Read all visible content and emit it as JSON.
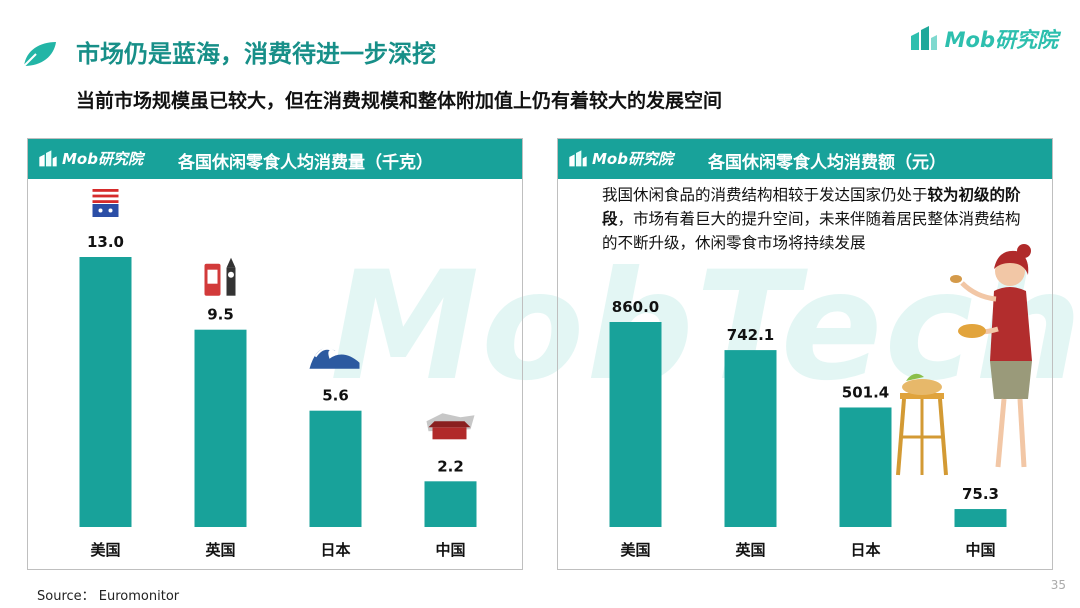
{
  "header": {
    "title": "市场仍是蓝海，消费待进一步深挖",
    "subtitle": "当前市场规模虽已较大，但在消费规模和整体附加值上仍有着较大的发展空间",
    "logo_text": "Mob研究院"
  },
  "watermark": "MobTech",
  "colors": {
    "accent": "#18a29a",
    "bar": "#18a29a",
    "title": "#178f88"
  },
  "panels": {
    "left": {
      "logo": "Mob研究院",
      "title": "各国休闲零食人均消费量（千克）"
    },
    "right": {
      "logo": "Mob研究院",
      "title": "各国休闲零食人均消费额（元）"
    }
  },
  "note": {
    "part1": "我国休闲食品的消费结构相较于发达国家仍处于",
    "bold": "较为初级的阶段",
    "part2": "，市场有着巨大的提升空间，未来伴随着居民整体消费结构的不断升级，休闲零食市场将持续发展"
  },
  "chart_data": [
    {
      "type": "bar",
      "title": "各国休闲零食人均消费量（千克）",
      "categories": [
        "美国",
        "英国",
        "日本",
        "中国"
      ],
      "values": [
        13.0,
        9.5,
        5.6,
        2.2
      ],
      "value_labels": [
        "13.0",
        "9.5",
        "5.6",
        "2.2"
      ],
      "icons": [
        "us-flag-icon",
        "london-landmark-icon",
        "wave-icon",
        "china-landmark-icon"
      ],
      "ylim": [
        0,
        16
      ],
      "grid": false,
      "legend": "none"
    },
    {
      "type": "bar",
      "title": "各国休闲零食人均消费额（元）",
      "categories": [
        "美国",
        "英国",
        "日本",
        "中国"
      ],
      "values": [
        860.0,
        742.1,
        501.4,
        75.3
      ],
      "value_labels": [
        "860.0",
        "742.1",
        "501.4",
        "75.3"
      ],
      "ylim": [
        0,
        1000
      ],
      "grid": false,
      "legend": "none"
    }
  ],
  "footer": {
    "source": "Source： Euromonitor",
    "page": "35"
  }
}
